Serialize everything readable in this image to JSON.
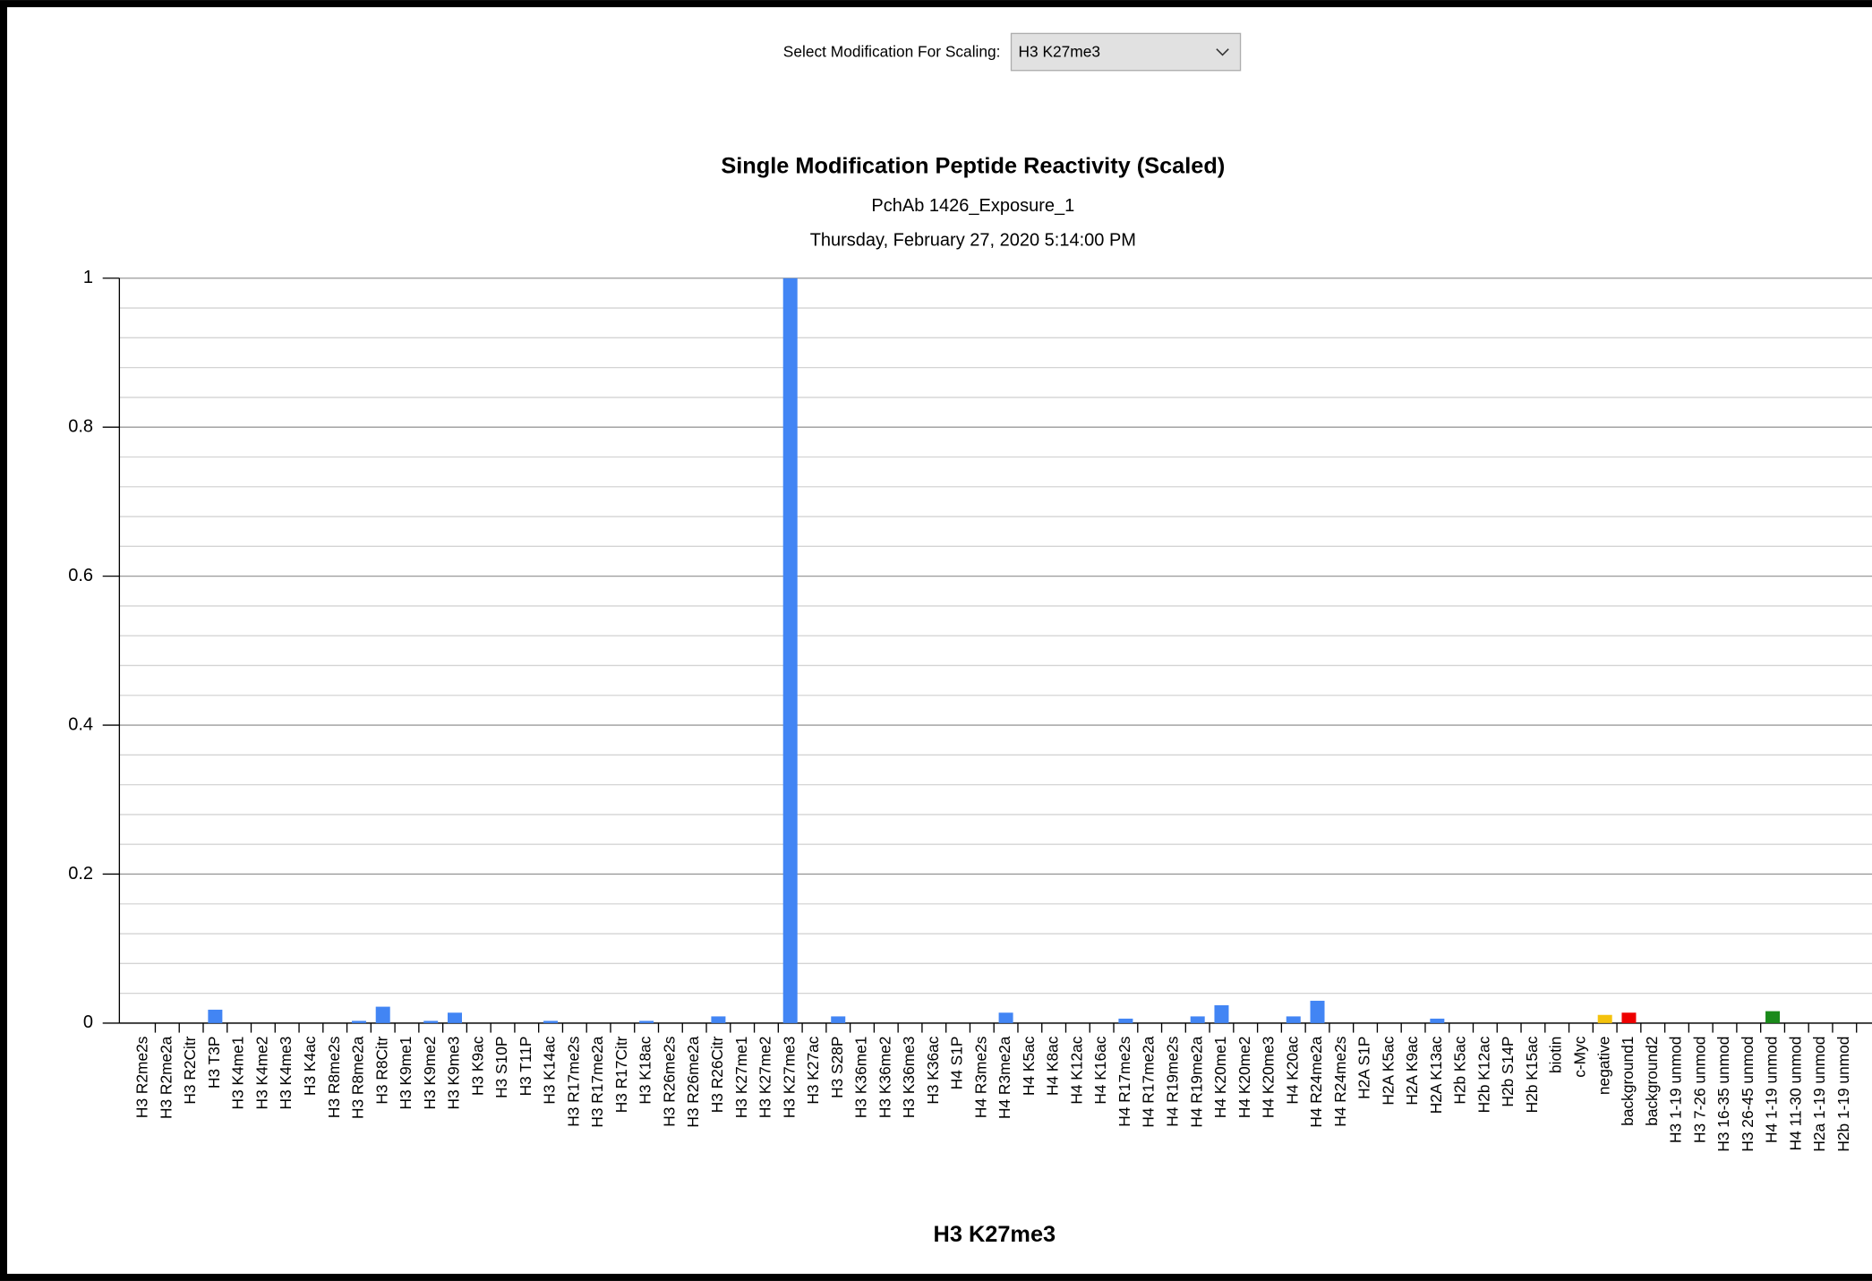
{
  "controls": {
    "scaling_label": "Select Modification For Scaling:",
    "scaling_value": "H3 K27me3"
  },
  "chart_data": {
    "type": "bar",
    "title": "Single Modification Peptide Reactivity (Scaled)",
    "subtitle": "PchAb 1426_Exposure_1",
    "date": "Thursday, February 27, 2020 5:14:00 PM",
    "x_label": "H3 K27me3",
    "categories": [
      "H3 R2me2s",
      "H3 R2me2a",
      "H3 R2Citr",
      "H3 T3P",
      "H3 K4me1",
      "H3 K4me2",
      "H3 K4me3",
      "H3 K4ac",
      "H3 R8me2s",
      "H3 R8me2a",
      "H3 R8Citr",
      "H3 K9me1",
      "H3 K9me2",
      "H3 K9me3",
      "H3 K9ac",
      "H3 S10P",
      "H3 T11P",
      "H3 K14ac",
      "H3 R17me2s",
      "H3 R17me2a",
      "H3 R17Citr",
      "H3 K18ac",
      "H3 R26me2s",
      "H3 R26me2a",
      "H3 R26Citr",
      "H3 K27me1",
      "H3 K27me2",
      "H3 K27me3",
      "H3 K27ac",
      "H3 S28P",
      "H3 K36me1",
      "H3 K36me2",
      "H3 K36me3",
      "H3 K36ac",
      "H4 S1P",
      "H4 R3me2s",
      "H4 R3me2a",
      "H4 K5ac",
      "H4 K8ac",
      "H4 K12ac",
      "H4 K16ac",
      "H4 R17me2s",
      "H4 R17me2a",
      "H4 R19me2s",
      "H4 R19me2a",
      "H4 K20me1",
      "H4 K20me2",
      "H4 K20me3",
      "H4 K20ac",
      "H4 R24me2a",
      "H4 R24me2s",
      "H2A S1P",
      "H2A K5ac",
      "H2A K9ac",
      "H2A K13ac",
      "H2b K5ac",
      "H2b K12ac",
      "H2b S14P",
      "H2b K15ac",
      "biotin",
      "c-Myc",
      "negative",
      "background1",
      "background2",
      "H3 1-19 unmod",
      "H3 7-26 unmod",
      "H3 16-35 unmod",
      "H3 26-45 unmod",
      "H4 1-19 unmod",
      "H4 11-30 unmod",
      "H2a 1-19 unmod",
      "H2b 1-19 unmod"
    ],
    "values": [
      0,
      0,
      0,
      0.018,
      0,
      0,
      0,
      0,
      0,
      0.003,
      0.022,
      0,
      0.003,
      0.014,
      0,
      0,
      0,
      0.003,
      0,
      0,
      0,
      0.003,
      0,
      0,
      0.009,
      0,
      0,
      1,
      0,
      0.009,
      0,
      0,
      0,
      0,
      0,
      0,
      0.014,
      0,
      0,
      0,
      0,
      0.006,
      0,
      0,
      0.009,
      0.024,
      0,
      0,
      0.009,
      0.03,
      0,
      0,
      0,
      0,
      0.006,
      0,
      0,
      0,
      0,
      0,
      0,
      0.011,
      0.014,
      0,
      0,
      0,
      0,
      0,
      0.016,
      0,
      0,
      0
    ],
    "color": "#4285f4",
    "special_colors": {
      "61": "#f4c20d",
      "62": "#ee0000",
      "68": "#1a8a1a"
    },
    "ylim": [
      0,
      1
    ],
    "yticks": [
      0,
      0.2,
      0.4,
      0.6,
      0.8,
      1
    ],
    "minor_yticks": [
      0.04,
      0.08,
      0.12,
      0.16,
      0.24,
      0.28,
      0.32,
      0.36,
      0.44,
      0.48,
      0.52,
      0.56,
      0.64,
      0.68,
      0.72,
      0.76,
      0.84,
      0.88,
      0.92,
      0.96
    ],
    "grid": true
  }
}
